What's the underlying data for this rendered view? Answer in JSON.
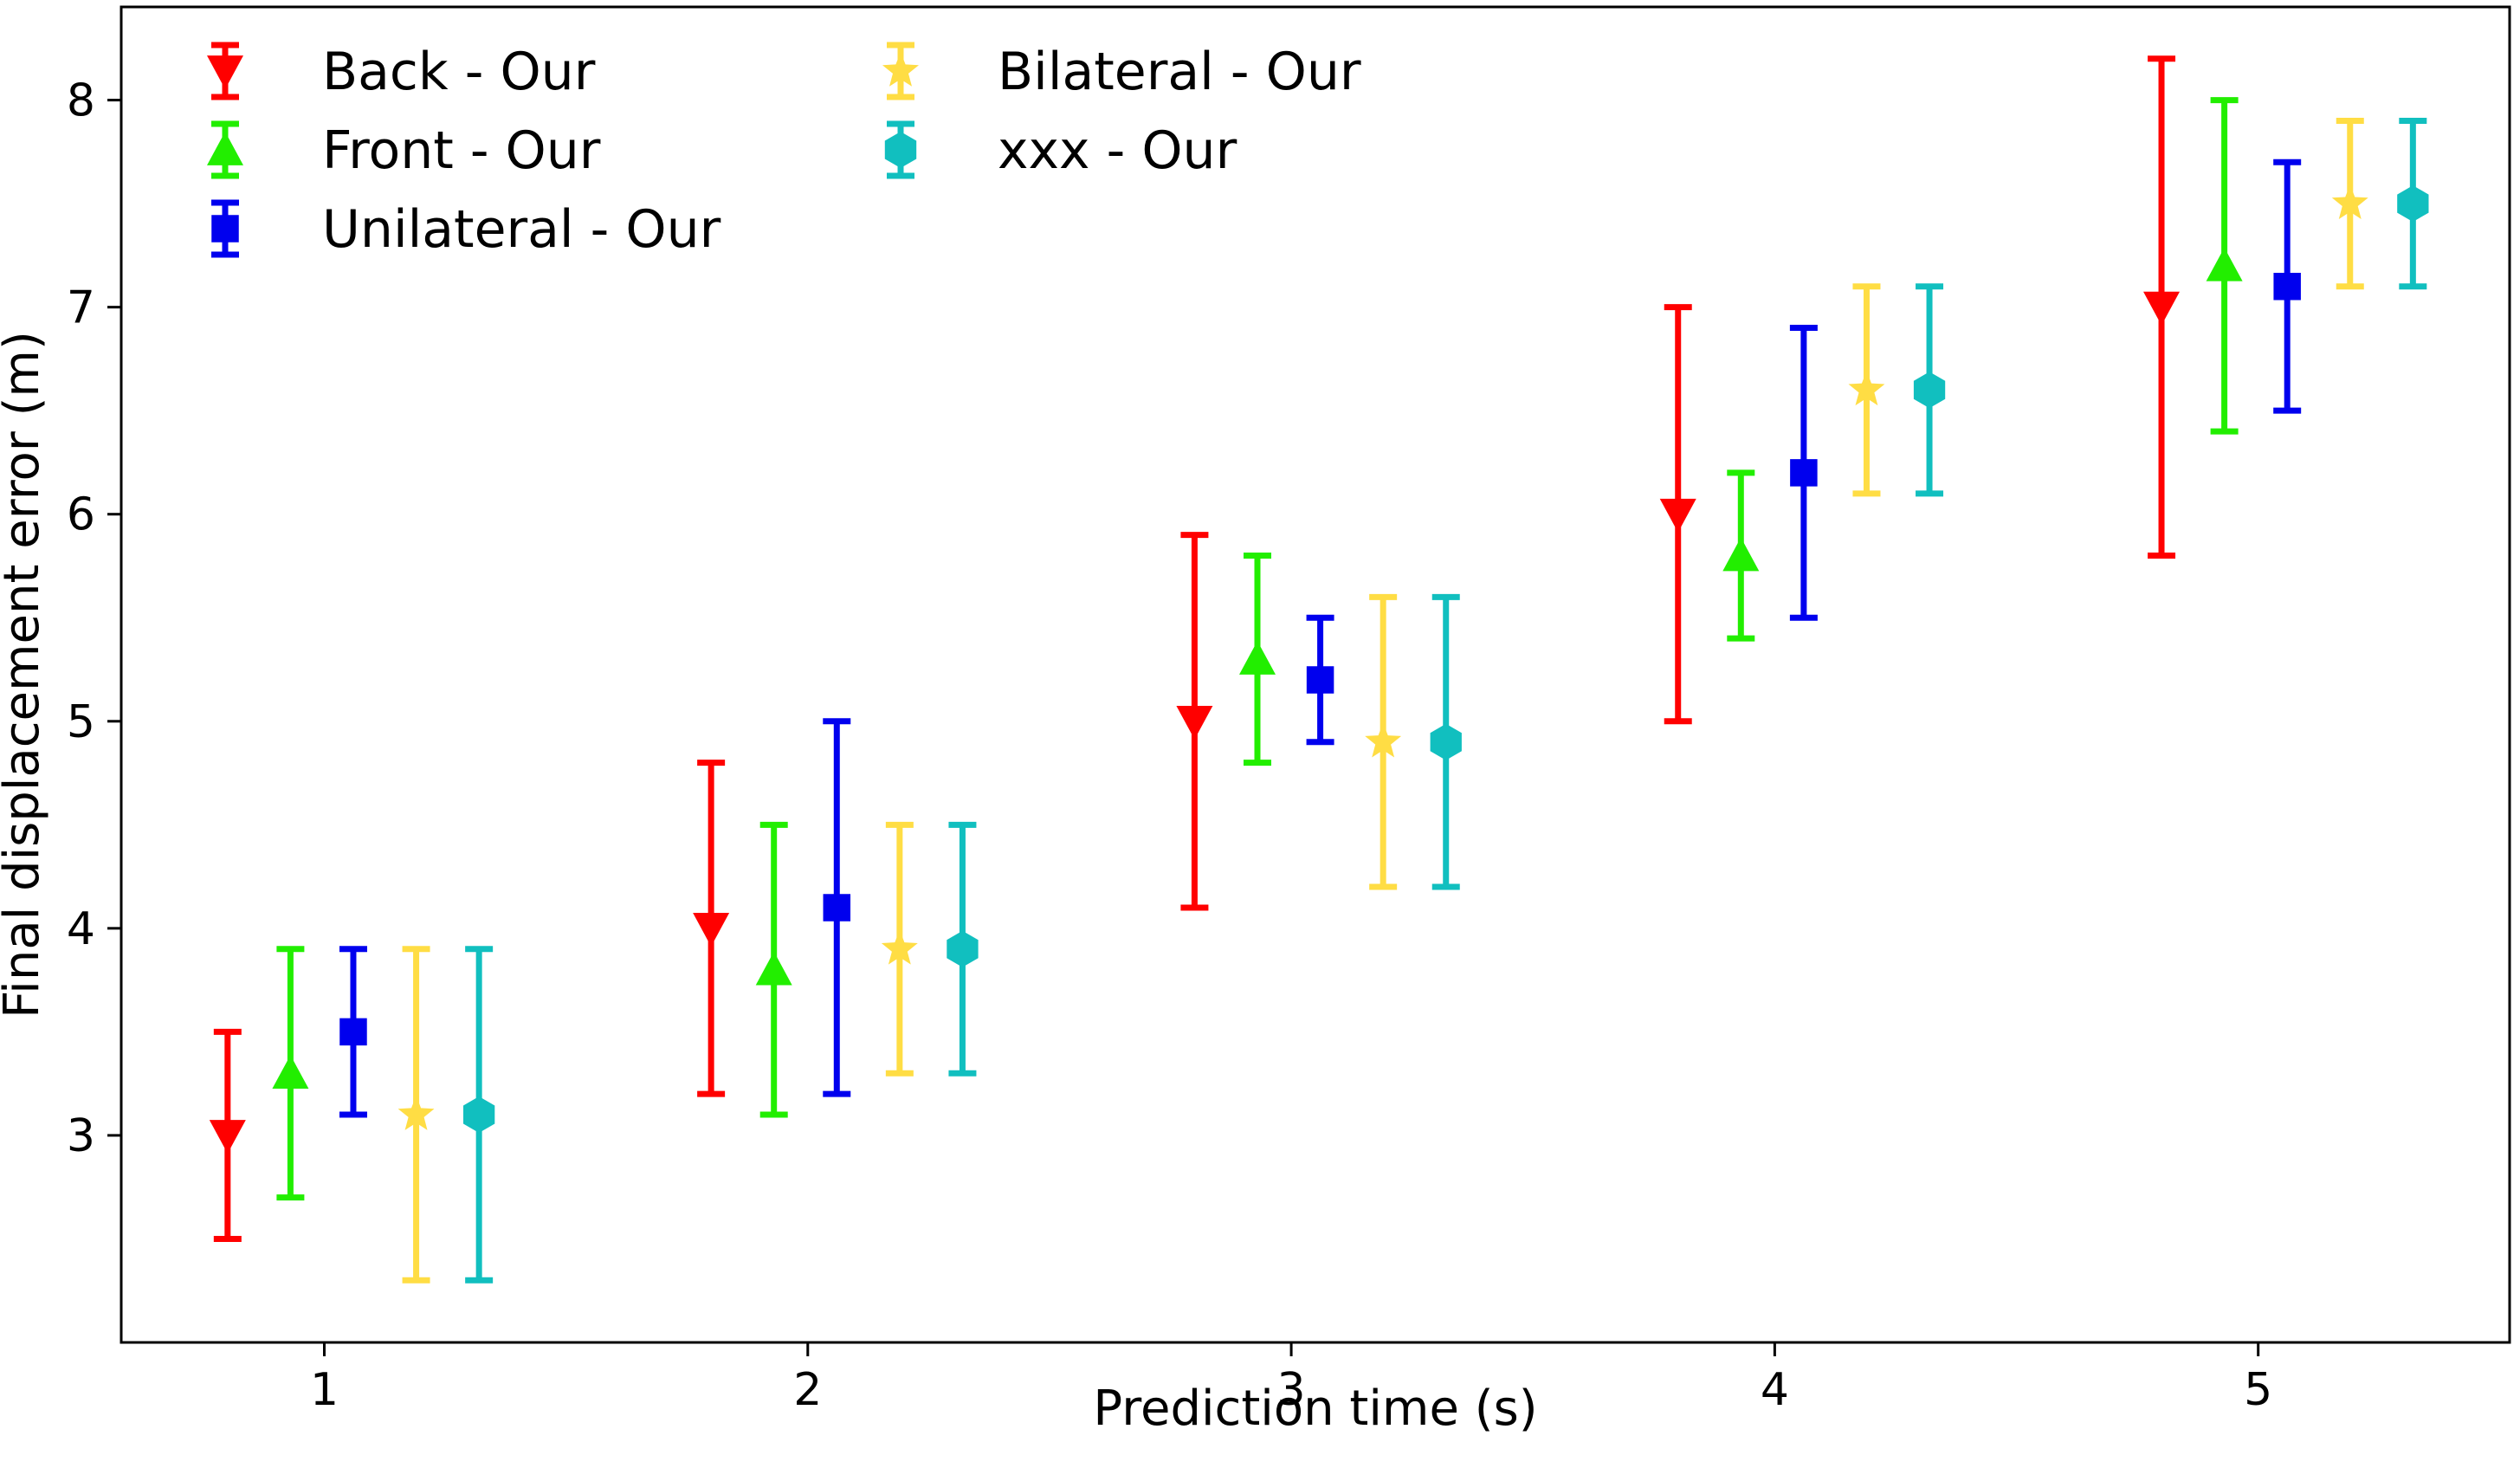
{
  "chart_data": {
    "type": "errorbar",
    "title": "",
    "xlabel": "Prediction time (s)",
    "ylabel": "Final displacement error (m)",
    "xlim": [
      0.58,
      5.52
    ],
    "ylim": [
      2.0,
      8.45
    ],
    "grid": false,
    "legend_position": "top-left",
    "x_ticks": [
      1,
      2,
      3,
      4,
      5
    ],
    "x_tick_labels": [
      "1",
      "2",
      "3",
      "4",
      "5"
    ],
    "y_ticks": [
      3,
      4,
      5,
      6,
      7,
      8
    ],
    "y_tick_labels": [
      "3",
      "4",
      "5",
      "6",
      "7",
      "8"
    ],
    "series": [
      {
        "name": "Back - Our",
        "color": "#ff0000",
        "marker": "triangle-down",
        "offset": -0.2,
        "values": [
          3.0,
          4.0,
          5.0,
          6.0,
          7.0
        ],
        "lower": [
          2.5,
          3.2,
          4.1,
          5.0,
          5.8
        ],
        "upper": [
          3.5,
          4.8,
          5.9,
          7.0,
          8.2
        ]
      },
      {
        "name": "Front - Our",
        "color": "#22ee00",
        "marker": "triangle-up",
        "offset": -0.07,
        "values": [
          3.3,
          3.8,
          5.3,
          5.8,
          7.2
        ],
        "lower": [
          2.7,
          3.1,
          4.8,
          5.4,
          6.4
        ],
        "upper": [
          3.9,
          4.5,
          5.8,
          6.2,
          8.0
        ]
      },
      {
        "name": "Unilateral - Our",
        "color": "#0000ee",
        "marker": "square",
        "offset": 0.06,
        "values": [
          3.5,
          4.1,
          5.2,
          6.2,
          7.1
        ],
        "lower": [
          3.1,
          3.2,
          4.9,
          5.5,
          6.5
        ],
        "upper": [
          3.9,
          5.0,
          5.5,
          6.9,
          7.7
        ]
      },
      {
        "name": "Bilateral - Our",
        "color": "#ffdd44",
        "marker": "star",
        "offset": 0.19,
        "values": [
          3.1,
          3.9,
          4.9,
          6.6,
          7.5
        ],
        "lower": [
          2.3,
          3.3,
          4.2,
          6.1,
          7.1
        ],
        "upper": [
          3.9,
          4.5,
          5.6,
          7.1,
          7.9
        ]
      },
      {
        "name": "xxx - Our",
        "color": "#11bfbf",
        "marker": "hexagon",
        "offset": 0.32,
        "values": [
          3.1,
          3.9,
          4.9,
          6.6,
          7.5
        ],
        "lower": [
          2.3,
          3.3,
          4.2,
          6.1,
          7.1
        ],
        "upper": [
          3.9,
          4.5,
          5.6,
          7.1,
          7.9
        ]
      }
    ]
  }
}
